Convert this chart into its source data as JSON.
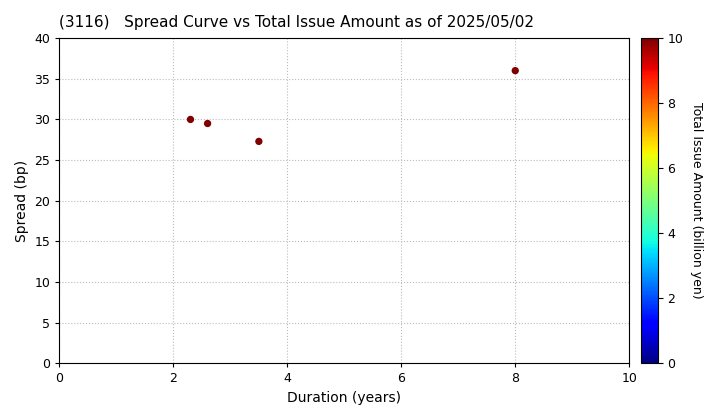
{
  "title": "(3116)   Spread Curve vs Total Issue Amount as of 2025/05/02",
  "xlabel": "Duration (years)",
  "ylabel": "Spread (bp)",
  "colorbar_label": "Total Issue Amount (billion yen)",
  "xlim": [
    0,
    10
  ],
  "ylim": [
    0,
    40
  ],
  "xticks": [
    0,
    2,
    4,
    6,
    8,
    10
  ],
  "yticks": [
    0,
    5,
    10,
    15,
    20,
    25,
    30,
    35,
    40
  ],
  "points": [
    {
      "duration": 2.3,
      "spread": 30.0,
      "amount": 10.0
    },
    {
      "duration": 2.6,
      "spread": 29.5,
      "amount": 10.0
    },
    {
      "duration": 3.5,
      "spread": 27.3,
      "amount": 10.0
    },
    {
      "duration": 8.0,
      "spread": 36.0,
      "amount": 10.0
    }
  ],
  "colormap": "jet",
  "clim": [
    0,
    10
  ],
  "clim_ticks": [
    0,
    2,
    4,
    6,
    8,
    10
  ],
  "marker_size": 18,
  "background_color": "#ffffff",
  "grid_color": "#bbbbbb",
  "grid_style": "dotted",
  "title_fontsize": 11,
  "axis_label_fontsize": 10,
  "tick_fontsize": 9,
  "colorbar_fontsize": 9
}
